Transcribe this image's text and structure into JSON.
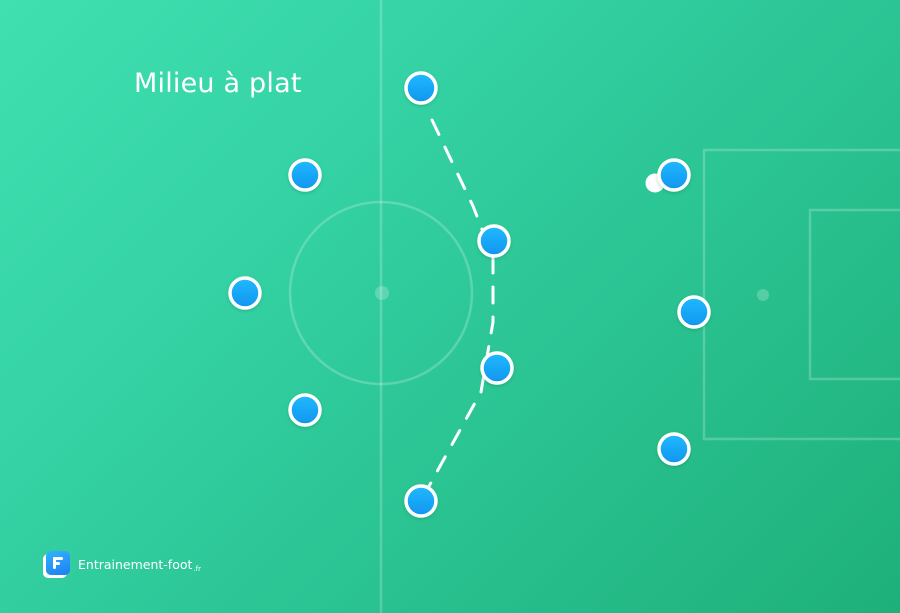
{
  "title": "Milieu à plat",
  "brand": {
    "name": "Entrainement-foot",
    "tld": ".fr"
  },
  "colors": {
    "pitch_start": "#40e0b0",
    "pitch_end": "#1eb07a",
    "player_fill": "#1aa7f5",
    "player_outline": "#ffffff",
    "ball": "#ffffff",
    "lines": "rgba(255,255,255,0.22)"
  },
  "diagram": {
    "formation": "4-4-2",
    "midfield_shape": "flat",
    "defenders": 4,
    "midfielders": 4,
    "forwards": 2,
    "ball_holder": "forward-1",
    "connector": "dashed line linking the four midfielders"
  }
}
